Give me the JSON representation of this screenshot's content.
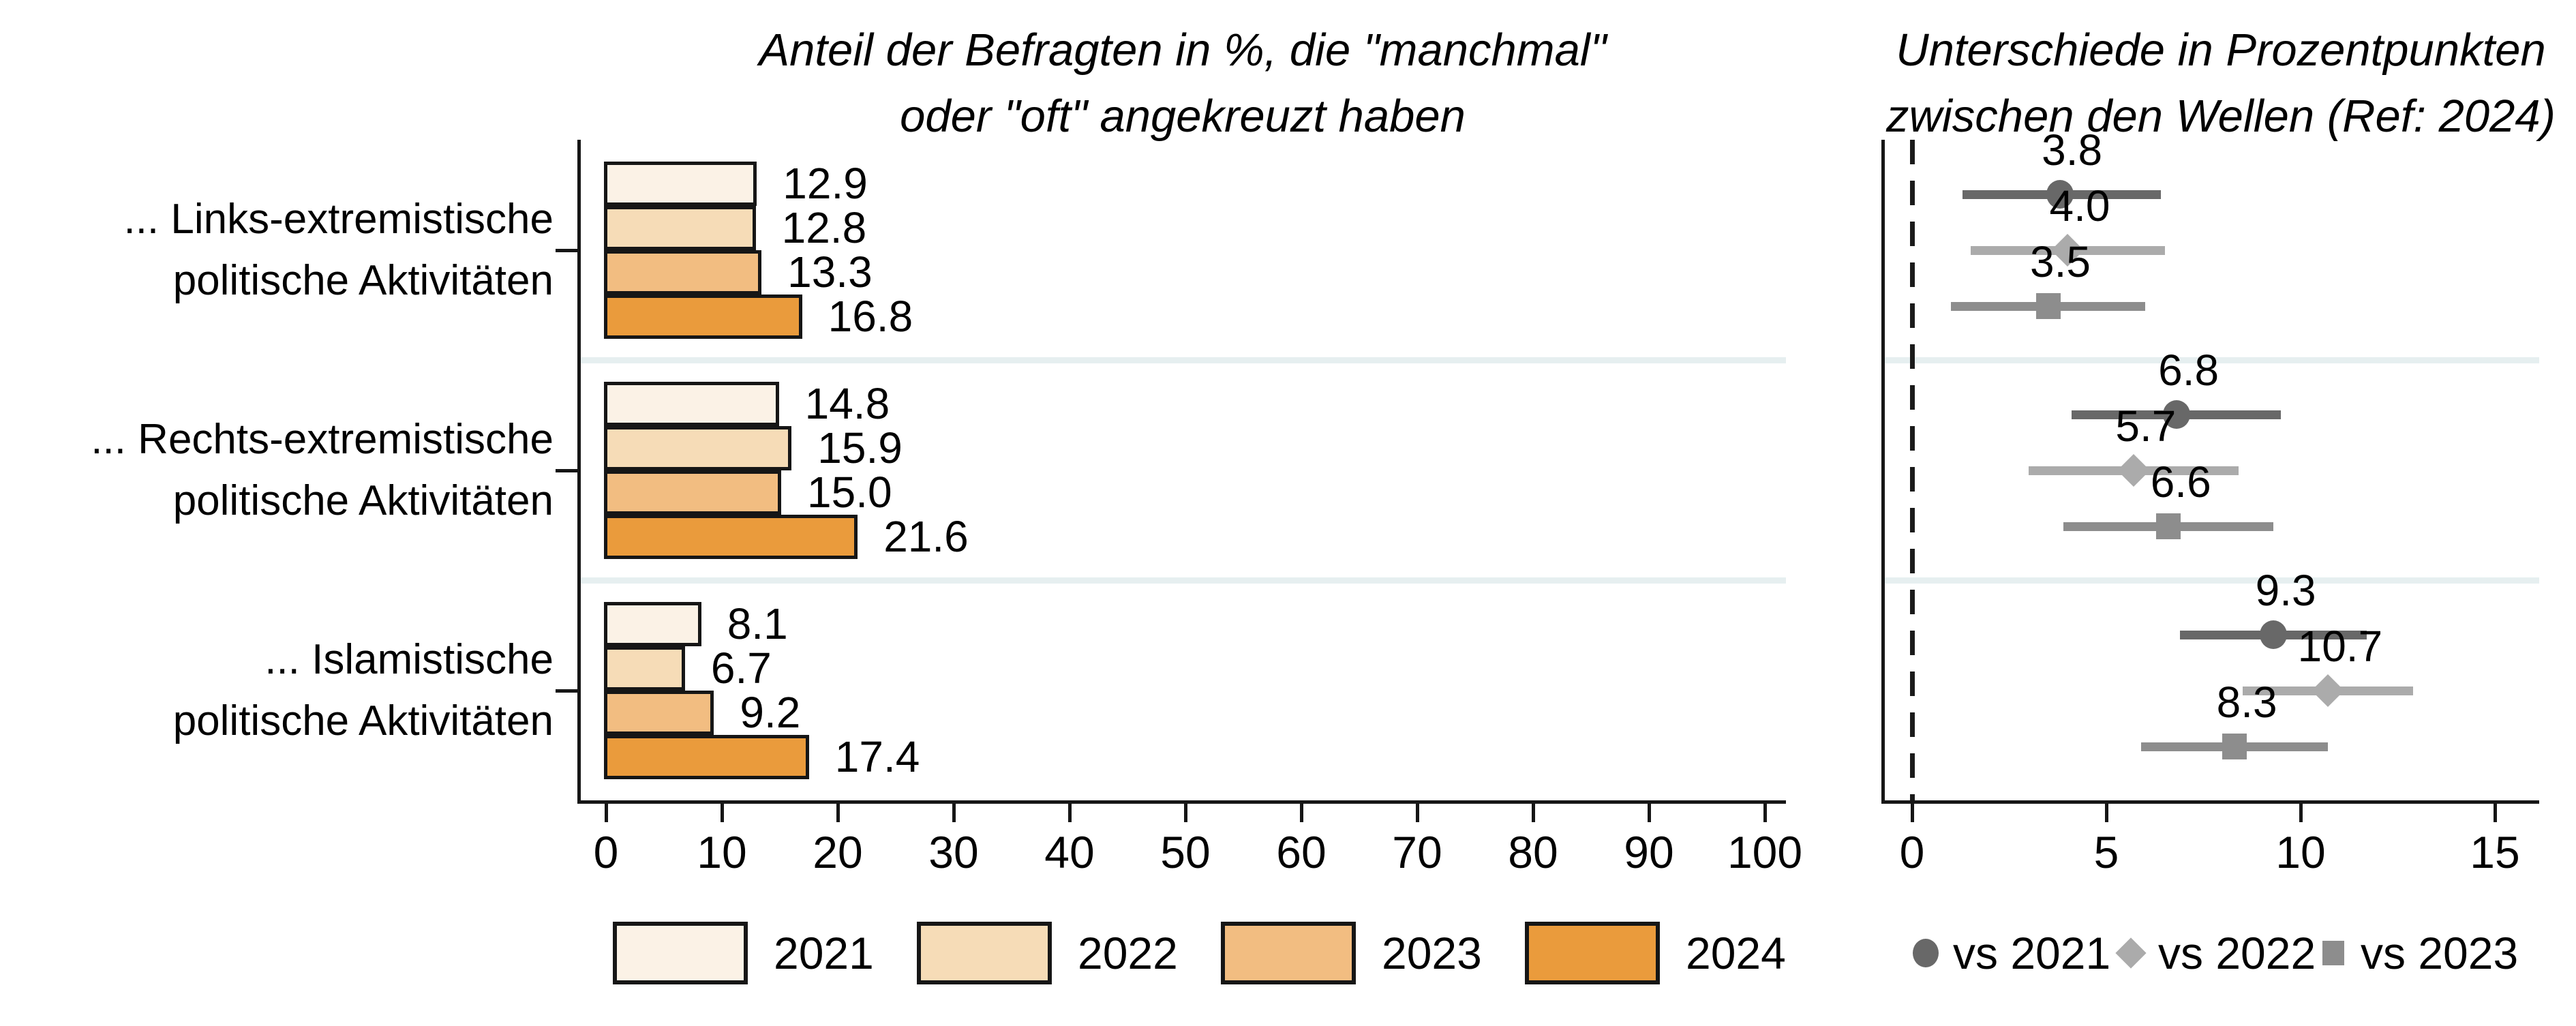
{
  "titles": {
    "left": [
      "Anteil der Befragten in %, die \"manchmal\"",
      "oder \"oft\" angekreuzt haben"
    ],
    "right": [
      "Unterschiede in Prozentpunkten",
      "zwischen den Wellen (Ref: 2024)"
    ]
  },
  "colors": {
    "background": "#ffffff",
    "axis": "#161616",
    "separator": "#e6eff0",
    "bar_border": "#161616",
    "year_2021": "#fbf2e6",
    "year_2022": "#f6dcb7",
    "year_2023": "#f2bd81",
    "year_2024": "#ea9b3c",
    "vs_2021": "#686868",
    "vs_2022": "#ababab",
    "vs_2023": "#8d8d8d",
    "dashed_reference": "#1a1a1a"
  },
  "chart_data": [
    {
      "type": "bar",
      "orientation": "horizontal",
      "title": "Anteil der Befragten in %, die \"manchmal\" oder \"oft\" angekreuzt haben",
      "categories": [
        "... Links-extremistische politische Aktivitäten",
        "... Rechts-extremistische politische Aktivitäten",
        "... Islamistische politische Aktivitäten"
      ],
      "category_lines": [
        [
          "... Links-extremistische",
          "politische Aktivitäten"
        ],
        [
          "... Rechts-extremistische",
          "politische Aktivitäten"
        ],
        [
          "... Islamistische",
          "politische Aktivitäten"
        ]
      ],
      "series": [
        {
          "name": "2021",
          "color": "#fbf2e6",
          "values": [
            12.9,
            14.8,
            8.1
          ]
        },
        {
          "name": "2022",
          "color": "#f6dcb7",
          "values": [
            12.8,
            15.9,
            6.7
          ]
        },
        {
          "name": "2023",
          "color": "#f2bd81",
          "values": [
            13.3,
            15.0,
            9.2
          ]
        },
        {
          "name": "2024",
          "color": "#ea9b3c",
          "values": [
            16.8,
            21.6,
            17.4
          ]
        }
      ],
      "value_labels": true,
      "xlim": [
        0,
        100
      ],
      "xticks": [
        0,
        10,
        20,
        30,
        40,
        50,
        60,
        70,
        80,
        90,
        100
      ],
      "grid": false,
      "legend_position": "bottom"
    },
    {
      "type": "scatter",
      "subtype": "dot-with-ci",
      "title": "Unterschiede in Prozentpunkten zwischen den Wellen (Ref: 2024)",
      "categories": [
        "... Links-extremistische politische Aktivitäten",
        "... Rechts-extremistische politische Aktivitäten",
        "... Islamistische politische Aktivitäten"
      ],
      "reference_line_x": 0,
      "xlim": [
        -0.8,
        16.2
      ],
      "xticks": [
        0,
        5,
        10,
        15
      ],
      "grid": false,
      "legend_position": "bottom",
      "series": [
        {
          "name": "vs 2021",
          "marker": "circle",
          "color": "#686868",
          "points": [
            {
              "value": 3.8,
              "ci_low": 1.3,
              "ci_high": 6.4
            },
            {
              "value": 6.8,
              "ci_low": 4.1,
              "ci_high": 9.5
            },
            {
              "value": 9.3,
              "ci_low": 6.9,
              "ci_high": 11.7
            }
          ]
        },
        {
          "name": "vs 2022",
          "marker": "diamond",
          "color": "#ababab",
          "points": [
            {
              "value": 4.0,
              "ci_low": 1.5,
              "ci_high": 6.5
            },
            {
              "value": 5.7,
              "ci_low": 3.0,
              "ci_high": 8.4
            },
            {
              "value": 10.7,
              "ci_low": 8.5,
              "ci_high": 12.9
            }
          ]
        },
        {
          "name": "vs 2023",
          "marker": "square",
          "color": "#8d8d8d",
          "points": [
            {
              "value": 3.5,
              "ci_low": 1.0,
              "ci_high": 6.0
            },
            {
              "value": 6.6,
              "ci_low": 3.9,
              "ci_high": 9.3
            },
            {
              "value": 8.3,
              "ci_low": 5.9,
              "ci_high": 10.7
            }
          ]
        }
      ]
    }
  ]
}
